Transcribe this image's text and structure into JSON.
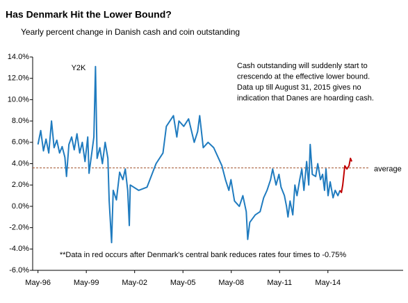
{
  "chart_data": {
    "type": "line",
    "title": "Has Denmark Hit the Lower Bound?",
    "subtitle": "Yearly percent change in Danish cash and coin outstanding",
    "annotations": {
      "y2k": {
        "text": "Y2K",
        "x": 1999.9,
        "y": 13.1
      },
      "note": [
        "Cash outstanding will suddenly start to",
        "crescendo at the effective lower bound.",
        "Data up till August 31, 2015 gives no",
        "indication that Danes are hoarding cash."
      ],
      "red_note": "**Data in red occurs after Denmark's central bank reduces rates four times to -0.75%"
    },
    "reference_line": {
      "value": 3.6,
      "label": "average",
      "color": "#a0522d"
    },
    "xlim": [
      1996,
      2019
    ],
    "xticks": [
      {
        "value": 1996.33,
        "label": "May-96"
      },
      {
        "value": 1999.33,
        "label": "May-99"
      },
      {
        "value": 2002.33,
        "label": "May-02"
      },
      {
        "value": 2005.33,
        "label": "May-05"
      },
      {
        "value": 2008.33,
        "label": "May-08"
      },
      {
        "value": 2011.33,
        "label": "May-11"
      },
      {
        "value": 2014.33,
        "label": "May-14"
      }
    ],
    "ylim": [
      -6,
      14
    ],
    "yticks": [
      {
        "value": -6,
        "label": "-6.0%"
      },
      {
        "value": -4,
        "label": "-4.0%"
      },
      {
        "value": -2,
        "label": "-2.0%"
      },
      {
        "value": 0,
        "label": "0.0%"
      },
      {
        "value": 2,
        "label": "2.0%"
      },
      {
        "value": 4,
        "label": "4.0%"
      },
      {
        "value": 6,
        "label": "6.0%"
      },
      {
        "value": 8,
        "label": "8.0%"
      },
      {
        "value": 10,
        "label": "10.0%"
      },
      {
        "value": 12,
        "label": "12.0%"
      },
      {
        "value": 14,
        "label": "14.0%"
      }
    ],
    "grid": false,
    "series": [
      {
        "color": "#1f7bbf",
        "x": [
          1996.33,
          1996.5,
          1996.67,
          1996.83,
          1997.0,
          1997.17,
          1997.33,
          1997.5,
          1997.67,
          1997.83,
          1998.0,
          1998.1,
          1998.25,
          1998.42,
          1998.58,
          1998.75,
          1998.92,
          1999.08,
          1999.25,
          1999.42,
          1999.5,
          1999.67,
          1999.8,
          1999.9,
          2000.0,
          2000.17,
          2000.33,
          2000.5,
          2000.67,
          2000.75,
          2000.9,
          2001.0,
          2001.2,
          2001.4,
          2001.6,
          2001.75,
          2001.9,
          2002.0,
          2002.06,
          2002.58,
          2003.1,
          2003.66,
          2004.09,
          2004.3,
          2004.74,
          2004.95,
          2005.08,
          2005.38,
          2005.68,
          2006.03,
          2006.24,
          2006.37,
          2006.59,
          2006.89,
          2007.24,
          2007.54,
          2007.75,
          2007.97,
          2008.18,
          2008.31,
          2008.53,
          2008.83,
          2009.05,
          2009.26,
          2009.35,
          2009.48,
          2009.82,
          2010.12,
          2010.34,
          2010.55,
          2010.77,
          2010.9,
          2011.11,
          2011.29,
          2011.42,
          2011.63,
          2011.76,
          2011.85,
          2011.98,
          2012.15,
          2012.28,
          2012.41,
          2012.58,
          2012.71,
          2012.84,
          2013.01,
          2013.14,
          2013.23,
          2013.36,
          2013.57,
          2013.7,
          2013.87,
          2014.0,
          2014.12,
          2014.21,
          2014.34,
          2014.47,
          2014.65,
          2014.78,
          2014.95,
          2015.08
        ],
        "values": [
          5.8,
          7.1,
          5.2,
          6.3,
          5.0,
          8.0,
          5.5,
          6.2,
          5.0,
          5.6,
          4.6,
          2.8,
          5.8,
          6.5,
          5.3,
          6.8,
          5.0,
          6.0,
          4.2,
          6.5,
          3.1,
          5.0,
          6.5,
          13.1,
          4.5,
          5.5,
          4.0,
          6.0,
          4.5,
          0.5,
          -3.4,
          1.5,
          0.6,
          3.2,
          2.5,
          3.5,
          1.5,
          -1.8,
          2.0,
          1.5,
          1.8,
          4.0,
          5.0,
          7.5,
          8.5,
          6.5,
          8.0,
          7.5,
          8.2,
          6.0,
          7.0,
          8.5,
          5.5,
          6.0,
          5.5,
          4.5,
          3.8,
          2.5,
          1.5,
          2.5,
          0.5,
          0.0,
          1.0,
          -0.5,
          -3.1,
          -1.5,
          -0.8,
          -0.5,
          0.8,
          1.5,
          2.5,
          3.5,
          2.0,
          3.0,
          1.8,
          1.0,
          0.0,
          -1.0,
          0.5,
          -0.8,
          2.0,
          1.0,
          2.5,
          3.5,
          1.5,
          4.2,
          2.0,
          5.8,
          3.0,
          2.8,
          4.0,
          2.5,
          3.0,
          1.5,
          3.5,
          1.0,
          2.3,
          0.8,
          1.5,
          1.0,
          1.5
        ]
      },
      {
        "color": "#c00000",
        "x": [
          2015.08,
          2015.17,
          2015.25,
          2015.38,
          2015.51,
          2015.64,
          2015.73,
          2015.81
        ],
        "values": [
          1.5,
          1.3,
          2.0,
          3.8,
          3.5,
          3.8,
          4.5,
          4.2
        ]
      }
    ]
  }
}
